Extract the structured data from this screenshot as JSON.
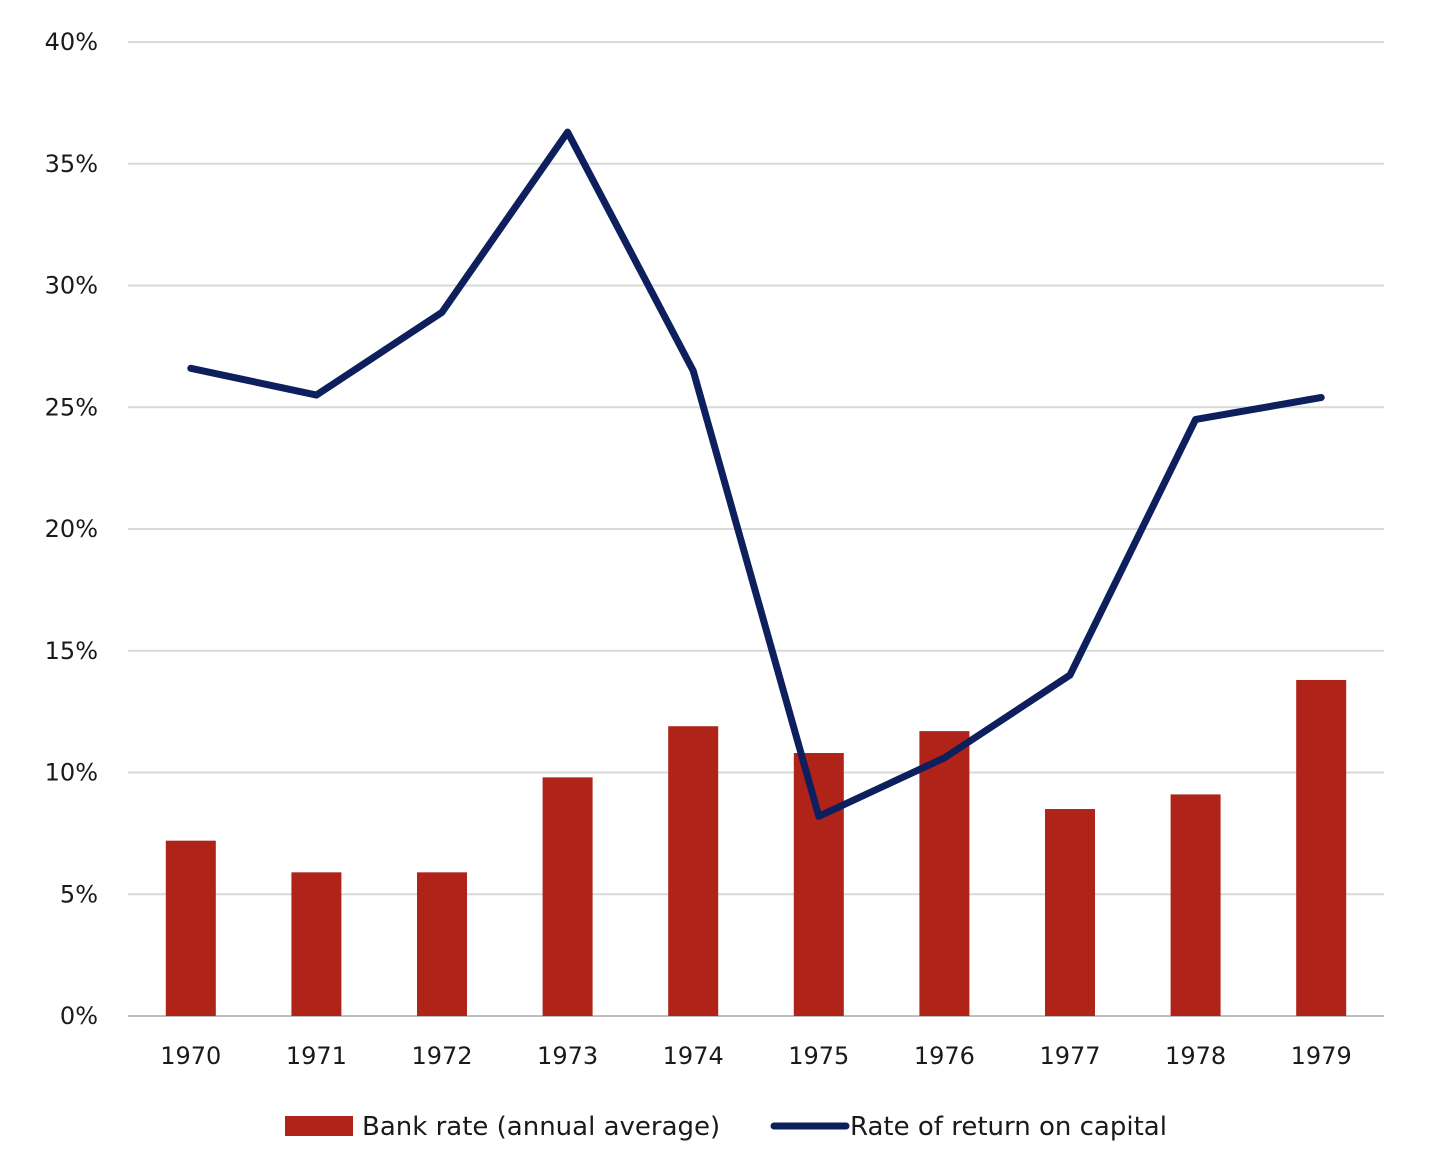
{
  "chart_data": {
    "type": "bar",
    "categories": [
      "1970",
      "1971",
      "1972",
      "1973",
      "1974",
      "1975",
      "1976",
      "1977",
      "1978",
      "1979"
    ],
    "series": [
      {
        "name": "Bank rate (annual average)",
        "type": "bar",
        "color": "#B02318",
        "values": [
          7.2,
          5.9,
          5.9,
          9.8,
          11.9,
          10.8,
          11.7,
          8.5,
          9.1,
          13.8
        ]
      },
      {
        "name": "Rate of return on capital",
        "type": "line",
        "color": "#0D1F5C",
        "values": [
          26.6,
          25.5,
          28.9,
          36.3,
          26.5,
          8.2,
          10.6,
          14.0,
          24.5,
          25.4
        ]
      }
    ],
    "y_ticks": [
      "0%",
      "5%",
      "10%",
      "15%",
      "20%",
      "25%",
      "30%",
      "35%",
      "40%"
    ],
    "ylim": [
      0,
      40
    ],
    "grid": true,
    "legend_position": "bottom"
  }
}
